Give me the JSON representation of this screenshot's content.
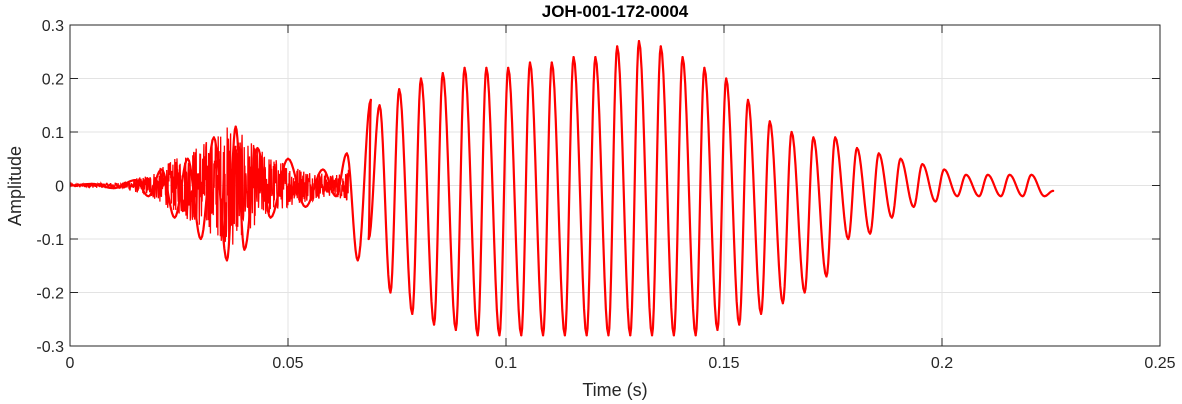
{
  "chart_data": {
    "type": "line",
    "title": "JOH-001-172-0004",
    "xlabel": "Time (s)",
    "ylabel": "Amplitude",
    "xlim": [
      0,
      0.25
    ],
    "ylim": [
      -0.3,
      0.3
    ],
    "xticks": [
      0,
      0.05,
      0.1,
      0.15,
      0.2,
      0.25
    ],
    "xtick_labels": [
      "0",
      "0.05",
      "0.1",
      "0.15",
      "0.2",
      "0.25"
    ],
    "yticks": [
      -0.3,
      -0.2,
      -0.1,
      0,
      0.1,
      0.2,
      0.3
    ],
    "ytick_labels": [
      "-0.3",
      "-0.2",
      "-0.1",
      "0",
      "0.1",
      "0.2",
      "0.3"
    ],
    "grid": true,
    "series": [
      {
        "color": "#ff0000",
        "x": [
          0,
          0.005,
          0.01,
          0.015,
          0.018,
          0.021,
          0.024,
          0.027,
          0.03,
          0.033,
          0.036,
          0.038,
          0.04,
          0.043,
          0.046,
          0.05,
          0.054,
          0.058,
          0.061,
          0.0635,
          0.066,
          0.069,
          0.0685,
          0.071,
          0.0735,
          0.0755,
          0.0785,
          0.0805,
          0.0835,
          0.0855,
          0.0885,
          0.0905,
          0.0935,
          0.0955,
          0.0985,
          0.1005,
          0.1035,
          0.1055,
          0.1085,
          0.1105,
          0.1135,
          0.1155,
          0.1185,
          0.1205,
          0.1235,
          0.1255,
          0.1285,
          0.1305,
          0.1335,
          0.1355,
          0.1385,
          0.1405,
          0.1435,
          0.1455,
          0.1485,
          0.1505,
          0.1535,
          0.1555,
          0.1585,
          0.1605,
          0.1635,
          0.1655,
          0.1685,
          0.1705,
          0.1735,
          0.1755,
          0.1785,
          0.1805,
          0.1835,
          0.1855,
          0.1885,
          0.1905,
          0.1935,
          0.1955,
          0.1985,
          0.2005,
          0.2035,
          0.2055,
          0.2085,
          0.2105,
          0.2135,
          0.2155,
          0.2185,
          0.2205,
          0.2235,
          0.2255
        ],
        "y": [
          0,
          0.003,
          -0.005,
          0.01,
          -0.02,
          0.03,
          -0.06,
          0.05,
          -0.1,
          0.09,
          -0.14,
          0.11,
          -0.12,
          0.07,
          -0.06,
          0.05,
          -0.04,
          0.03,
          -0.02,
          0.06,
          -0.14,
          0.16,
          -0.1,
          0.15,
          -0.2,
          0.18,
          -0.24,
          0.2,
          -0.26,
          0.21,
          -0.27,
          0.22,
          -0.28,
          0.22,
          -0.28,
          0.22,
          -0.28,
          0.23,
          -0.28,
          0.23,
          -0.28,
          0.24,
          -0.28,
          0.24,
          -0.28,
          0.26,
          -0.28,
          0.27,
          -0.28,
          0.26,
          -0.28,
          0.24,
          -0.28,
          0.22,
          -0.27,
          0.2,
          -0.26,
          0.16,
          -0.24,
          0.12,
          -0.22,
          0.1,
          -0.2,
          0.09,
          -0.17,
          0.09,
          -0.1,
          0.07,
          -0.09,
          0.06,
          -0.06,
          0.05,
          -0.04,
          0.04,
          -0.03,
          0.03,
          -0.02,
          0.02,
          -0.02,
          0.02,
          -0.02,
          0.02,
          -0.02,
          0.02,
          -0.02,
          -0.01
        ],
        "noise_segments": [
          {
            "x_range": [
              0,
              0.064
            ],
            "envelope": [
              [
                0,
                0.003
              ],
              [
                0.012,
                0.006
              ],
              [
                0.018,
                0.02
              ],
              [
                0.022,
                0.04
              ],
              [
                0.026,
                0.06
              ],
              [
                0.03,
                0.08
              ],
              [
                0.034,
                0.1
              ],
              [
                0.037,
                0.12
              ],
              [
                0.04,
                0.09
              ],
              [
                0.045,
                0.06
              ],
              [
                0.05,
                0.04
              ],
              [
                0.055,
                0.03
              ],
              [
                0.06,
                0.02
              ],
              [
                0.064,
                0.03
              ]
            ]
          }
        ]
      }
    ]
  }
}
